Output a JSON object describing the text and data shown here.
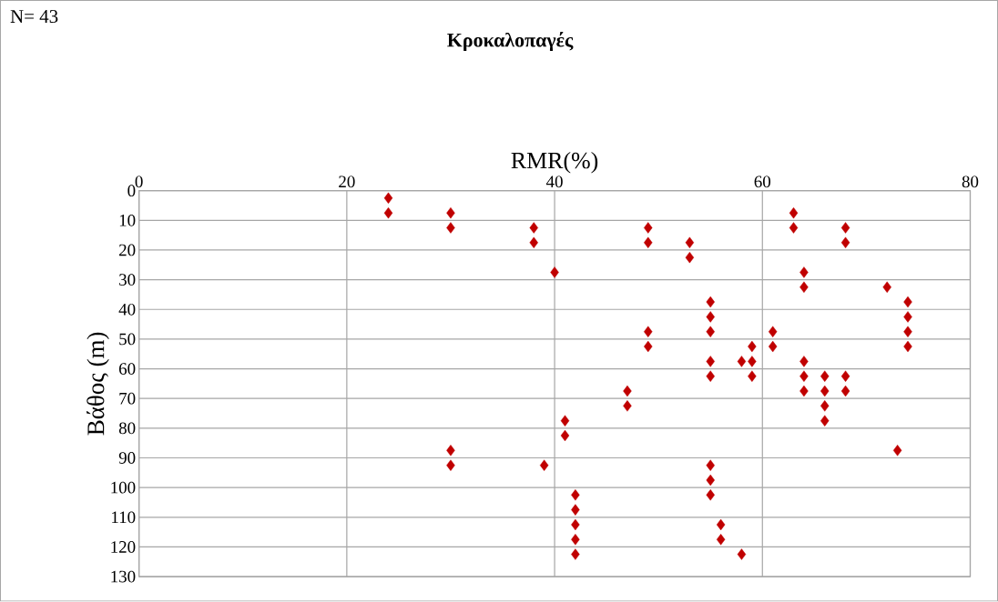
{
  "chart_data": {
    "type": "scatter",
    "title": "Κροκαλοπαγές",
    "xlabel": "RMR(%)",
    "ylabel": "Βάθος (m)",
    "annotations": [
      "N= 43"
    ],
    "x": [
      24,
      24,
      30,
      30,
      38,
      38,
      49,
      49,
      53,
      53,
      63,
      63,
      68,
      68,
      40,
      64,
      64,
      72,
      74,
      74,
      74,
      74,
      55,
      55,
      55,
      49,
      49,
      61,
      61,
      59,
      58,
      59,
      59,
      55,
      55,
      64,
      64,
      64,
      66,
      68,
      66,
      68,
      66,
      66,
      47,
      47,
      41,
      41,
      30,
      30,
      39,
      73,
      55,
      55,
      55,
      42,
      42,
      42,
      42,
      42,
      56,
      56,
      58
    ],
    "values": [
      2.5,
      7.5,
      7.5,
      12.5,
      12.5,
      17.5,
      12.5,
      17.5,
      17.5,
      22.5,
      7.5,
      12.5,
      12.5,
      17.5,
      27.5,
      27.5,
      32.5,
      32.5,
      37.5,
      42.5,
      47.5,
      52.5,
      37.5,
      42.5,
      47.5,
      47.5,
      52.5,
      47.5,
      52.5,
      52.5,
      57.5,
      57.5,
      62.5,
      57.5,
      62.5,
      57.5,
      62.5,
      67.5,
      62.5,
      62.5,
      67.5,
      67.5,
      72.5,
      77.5,
      67.5,
      72.5,
      77.5,
      82.5,
      87.5,
      92.5,
      92.5,
      87.5,
      92.5,
      97.5,
      102.5,
      102.5,
      107.5,
      112.5,
      117.5,
      122.5,
      112.5,
      117.5,
      122.5
    ],
    "color": "#c00000",
    "marker": "diamond",
    "xlim": [
      0,
      80
    ],
    "xticks": [
      0,
      20,
      40,
      60,
      80
    ],
    "ylim": [
      130,
      0
    ],
    "yticks": [
      0,
      10,
      20,
      30,
      40,
      50,
      60,
      70,
      80,
      90,
      100,
      110,
      120,
      130
    ],
    "grid": true
  }
}
